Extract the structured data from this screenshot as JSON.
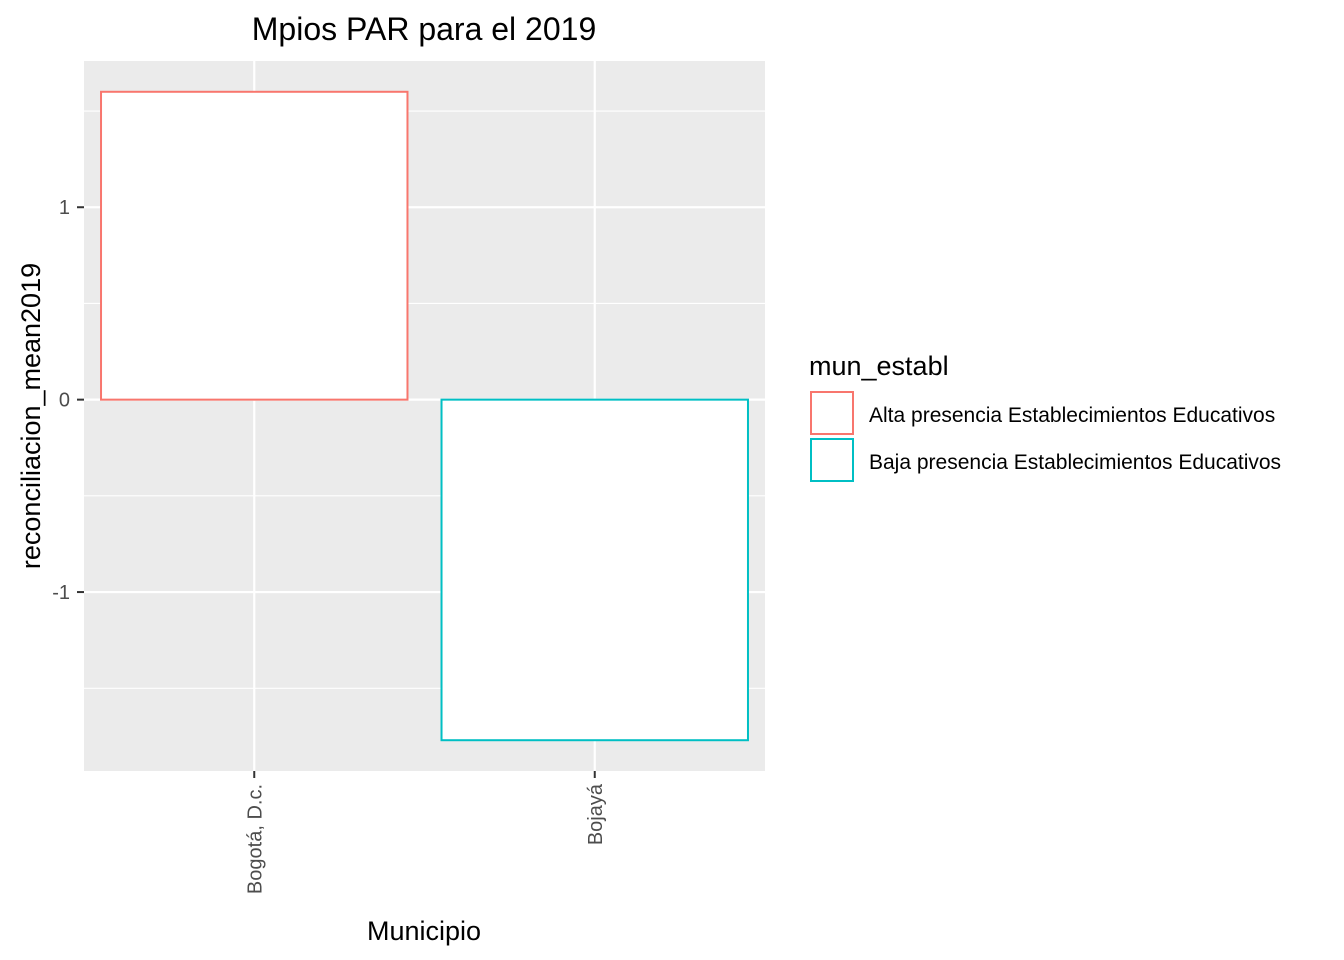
{
  "chart_data": {
    "type": "bar",
    "title": "Mpios PAR para el 2019",
    "xlabel": "Municipio",
    "ylabel": "reconciliacion_mean2019",
    "categories": [
      "Bogotá, D.c.",
      "Bojayá"
    ],
    "values": [
      1.6,
      -1.77
    ],
    "groups": [
      "Alta presencia Establecimientos Educativos",
      "Baja presencia Establecimientos Educativos"
    ],
    "ylim": [
      -1.93,
      1.76
    ],
    "y_ticks": [
      -1,
      0,
      1
    ],
    "y_tick_labels": [
      "-1",
      "0",
      "1"
    ],
    "grid": true,
    "bar_fill": "#ffffff",
    "legend": {
      "title": "mun_establ",
      "position": "right",
      "entries": [
        {
          "label": "Alta presencia Establecimientos Educativos",
          "color": "#F8766D"
        },
        {
          "label": "Baja presencia Establecimientos Educativos",
          "color": "#00BFC4"
        }
      ]
    },
    "panel_background": "#EBEBEB",
    "grid_color": "#ffffff"
  }
}
